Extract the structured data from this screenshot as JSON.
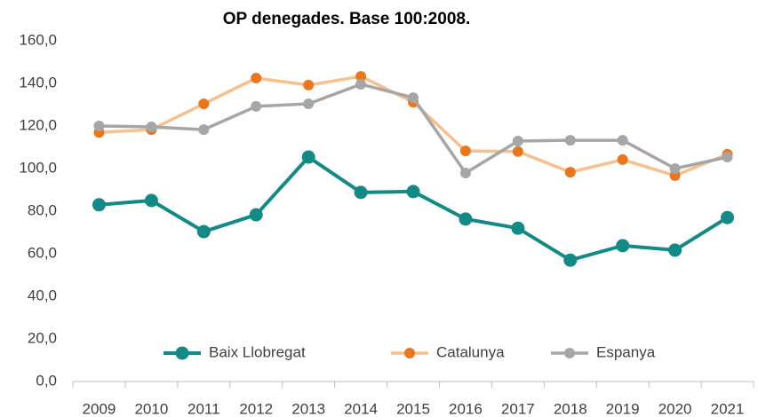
{
  "chart_data": {
    "type": "line",
    "title": "OP denegades. Base 100:2008.",
    "categories": [
      "2009",
      "2010",
      "2011",
      "2012",
      "2013",
      "2014",
      "2015",
      "2016",
      "2017",
      "2018",
      "2019",
      "2020",
      "2021"
    ],
    "series": [
      {
        "name": "Baix Llobregat",
        "color": "#138a85",
        "marker_color": "#138a85",
        "values": [
          83,
          85,
          70.4,
          78.3,
          105.4,
          88.8,
          89.2,
          76.3,
          72,
          57,
          63.8,
          61.7,
          77
        ]
      },
      {
        "name": "Catalunya",
        "color": "#f8c08e",
        "marker_color": "#e8771e",
        "values": [
          117,
          118.3,
          130.4,
          142.5,
          139.2,
          143.3,
          131.2,
          108.3,
          108,
          98.3,
          104.2,
          96.7,
          106.7
        ]
      },
      {
        "name": "Espanya",
        "color": "#a6a6a6",
        "marker_color": "#a6a6a6",
        "values": [
          120,
          119.6,
          118.3,
          129.2,
          130.4,
          139.6,
          133.3,
          97.9,
          112.9,
          113.3,
          113.3,
          100,
          105.4
        ]
      }
    ],
    "ylim": [
      0,
      160
    ],
    "yticks": [
      {
        "value": 0,
        "label": "0,0"
      },
      {
        "value": 20,
        "label": "20,0"
      },
      {
        "value": 40,
        "label": "40,0"
      },
      {
        "value": 60,
        "label": "60,0"
      },
      {
        "value": 80,
        "label": "80,0"
      },
      {
        "value": 100,
        "label": "100,0"
      },
      {
        "value": 120,
        "label": "120,0"
      },
      {
        "value": 140,
        "label": "140,0"
      },
      {
        "value": 160,
        "label": "160,0"
      }
    ],
    "grid": false,
    "legend": "bottom"
  }
}
